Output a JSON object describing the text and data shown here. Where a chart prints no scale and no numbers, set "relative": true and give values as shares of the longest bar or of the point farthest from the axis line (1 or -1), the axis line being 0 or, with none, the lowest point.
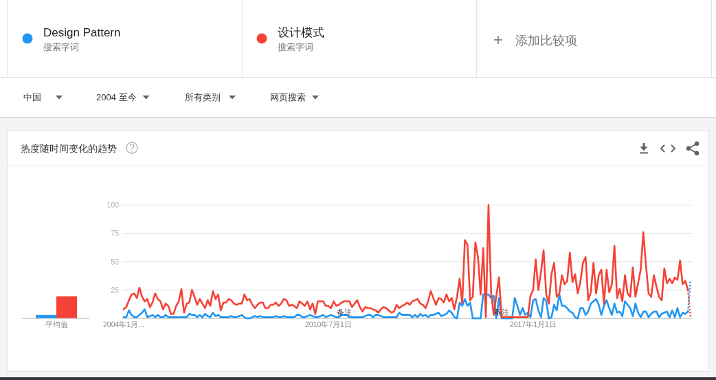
{
  "chart_data": [
    {
      "type": "other",
      "annotations": [
        "搜索字词",
        "搜索字词",
        "添加比较项",
        "中国",
        "2004 至今",
        "所有类别",
        "网页搜索"
      ]
    },
    {
      "type": "bar",
      "categories": [
        "平均值"
      ],
      "relative": true,
      "series": [
        {
          "color": "#2196f3",
          "values": [
            0.16
          ]
        },
        {
          "color": "#f44336",
          "values": [
            1
          ]
        }
      ]
    },
    {
      "type": "line",
      "title": "热度随时间变化的趋势",
      "legend": "top",
      "grid": "y",
      "xlim": [
        "2004-01",
        "2022-01"
      ],
      "ylim": [
        0,
        100
      ],
      "xticks": [
        {
          "value": "2004-01",
          "label": "2004年1月..."
        },
        {
          "value": "2010-07",
          "label": "2010年7月1日"
        },
        {
          "value": "2017-01",
          "label": "2017年1月1日"
        }
      ],
      "yticks": [
        25,
        50,
        75,
        100
      ],
      "annotations": [
        {
          "text": "备注",
          "x": "2011-01",
          "y": 0
        },
        {
          "text": "备注",
          "x": "2016-01",
          "y": 0
        }
      ],
      "x": [
        "2004-01",
        "2004-02",
        "2004-03",
        "2004-04",
        "2004-05",
        "2004-06",
        "2004-07",
        "2004-08",
        "2004-09",
        "2004-10",
        "2004-11",
        "2004-12",
        "2005-01",
        "2005-02",
        "2005-03",
        "2005-04",
        "2005-05",
        "2005-06",
        "2005-07",
        "2005-08",
        "2005-09",
        "2005-10",
        "2005-11",
        "2005-12",
        "2006-01",
        "2006-02",
        "2006-03",
        "2006-04",
        "2006-05",
        "2006-06",
        "2006-07",
        "2006-08",
        "2006-09",
        "2006-10",
        "2006-11",
        "2006-12",
        "2007-01",
        "2007-02",
        "2007-03",
        "2007-04",
        "2007-05",
        "2007-06",
        "2007-07",
        "2007-08",
        "2007-09",
        "2007-10",
        "2007-11",
        "2007-12",
        "2008-01",
        "2008-02",
        "2008-03",
        "2008-04",
        "2008-05",
        "2008-06",
        "2008-07",
        "2008-08",
        "2008-09",
        "2008-10",
        "2008-11",
        "2008-12",
        "2009-01",
        "2009-02",
        "2009-03",
        "2009-04",
        "2009-05",
        "2009-06",
        "2009-07",
        "2009-08",
        "2009-09",
        "2009-10",
        "2009-11",
        "2009-12",
        "2010-01",
        "2010-02",
        "2010-03",
        "2010-04",
        "2010-05",
        "2010-06",
        "2010-07",
        "2010-08",
        "2010-09",
        "2010-10",
        "2010-11",
        "2010-12",
        "2011-01",
        "2011-02",
        "2011-03",
        "2011-04",
        "2011-05",
        "2011-06",
        "2011-07",
        "2011-08",
        "2011-09",
        "2011-10",
        "2011-11",
        "2011-12",
        "2012-01",
        "2012-02",
        "2012-03",
        "2012-04",
        "2012-05",
        "2012-06",
        "2012-07",
        "2012-08",
        "2012-09",
        "2012-10",
        "2012-11",
        "2012-12",
        "2013-01",
        "2013-02",
        "2013-03",
        "2013-04",
        "2013-05",
        "2013-06",
        "2013-07",
        "2013-08",
        "2013-09",
        "2013-10",
        "2013-11",
        "2013-12",
        "2014-01",
        "2014-02",
        "2014-03",
        "2014-04",
        "2014-05",
        "2014-06",
        "2014-07",
        "2014-08",
        "2014-09",
        "2014-10",
        "2014-11",
        "2014-12",
        "2015-01",
        "2015-02",
        "2015-03",
        "2015-04",
        "2015-05",
        "2015-06",
        "2015-07",
        "2015-08",
        "2015-09",
        "2015-10",
        "2015-11",
        "2015-12",
        "2016-01",
        "2016-02",
        "2016-03",
        "2016-04",
        "2016-05",
        "2016-06",
        "2016-07",
        "2016-08",
        "2016-09",
        "2016-10",
        "2016-11",
        "2016-12",
        "2017-01",
        "2017-02",
        "2017-03",
        "2017-04",
        "2017-05",
        "2017-06",
        "2017-07",
        "2017-08",
        "2017-09",
        "2017-10",
        "2017-11",
        "2017-12",
        "2018-01",
        "2018-02",
        "2018-03",
        "2018-04",
        "2018-05",
        "2018-06",
        "2018-07",
        "2018-08",
        "2018-09",
        "2018-10",
        "2018-11",
        "2018-12",
        "2019-01",
        "2019-02",
        "2019-03",
        "2019-04",
        "2019-05",
        "2019-06",
        "2019-07",
        "2019-08",
        "2019-09",
        "2019-10",
        "2019-11",
        "2019-12",
        "2020-01",
        "2020-02",
        "2020-03",
        "2020-04",
        "2020-05",
        "2020-06",
        "2020-07",
        "2020-08",
        "2020-09",
        "2020-10",
        "2020-11",
        "2020-12",
        "2021-01",
        "2021-02",
        "2021-03",
        "2021-04",
        "2021-05",
        "2021-06",
        "2021-07",
        "2021-08",
        "2021-09",
        "2021-10",
        "2021-11",
        "2021-12"
      ],
      "series": [
        {
          "name": "Design Pattern",
          "color": "#2196f3",
          "values": [
            1,
            1,
            7,
            3,
            1,
            1,
            3,
            5,
            8,
            1,
            2,
            3,
            1,
            3,
            1,
            1,
            3,
            1,
            1,
            1,
            1,
            1,
            1,
            1,
            1,
            4,
            3,
            3,
            1,
            3,
            1,
            4,
            2,
            1,
            5,
            2,
            3,
            1,
            1,
            1,
            1,
            2,
            1,
            1,
            2,
            3,
            1,
            0,
            0,
            1,
            2,
            1,
            2,
            1,
            1,
            1,
            1,
            1,
            2,
            1,
            1,
            2,
            1,
            1,
            1,
            1,
            3,
            3,
            1,
            1,
            2,
            3,
            2,
            1,
            1,
            2,
            3,
            1,
            2,
            3,
            2,
            1,
            1,
            3,
            3,
            3,
            1,
            1,
            1,
            1,
            1,
            1,
            2,
            3,
            3,
            1,
            3,
            3,
            2,
            1,
            1,
            1,
            1,
            1,
            1,
            5,
            3,
            3,
            3,
            3,
            1,
            3,
            1,
            4,
            2,
            3,
            1,
            3,
            3,
            4,
            5,
            2,
            3,
            4,
            7,
            5,
            1,
            0,
            14,
            11,
            17,
            11,
            14,
            0,
            0,
            0,
            0,
            21,
            21,
            21,
            18,
            20,
            0,
            18,
            0,
            0,
            0,
            0,
            0,
            18,
            11,
            3,
            9,
            3,
            5,
            1,
            16,
            17,
            7,
            1,
            18,
            15,
            0,
            1,
            12,
            7,
            21,
            11,
            11,
            9,
            6,
            5,
            1,
            0,
            9,
            9,
            3,
            6,
            13,
            15,
            17,
            12,
            3,
            11,
            16,
            9,
            3,
            13,
            5,
            6,
            2,
            15,
            12,
            9,
            2,
            13,
            5,
            1,
            6,
            6,
            1,
            4,
            6,
            6,
            1,
            4,
            5,
            6,
            1,
            7,
            1,
            9,
            1,
            5,
            4,
            6
          ]
        },
        {
          "name": "设计模式",
          "color": "#f44336",
          "values": [
            8,
            10,
            16,
            21,
            22,
            18,
            27,
            19,
            15,
            17,
            10,
            14,
            22,
            17,
            15,
            8,
            13,
            11,
            4,
            4,
            11,
            15,
            26,
            5,
            13,
            14,
            25,
            19,
            12,
            17,
            13,
            9,
            16,
            11,
            24,
            17,
            21,
            7,
            14,
            14,
            17,
            16,
            13,
            12,
            13,
            13,
            21,
            16,
            17,
            12,
            9,
            12,
            14,
            14,
            9,
            9,
            12,
            12,
            14,
            11,
            13,
            17,
            16,
            11,
            12,
            11,
            9,
            15,
            13,
            11,
            15,
            8,
            13,
            4,
            15,
            15,
            15,
            11,
            11,
            9,
            15,
            11,
            12,
            14,
            15,
            15,
            15,
            10,
            13,
            16,
            10,
            6,
            10,
            9,
            9,
            8,
            7,
            5,
            8,
            10,
            9,
            7,
            5,
            6,
            12,
            9,
            11,
            12,
            14,
            12,
            15,
            16,
            17,
            13,
            12,
            9,
            15,
            24,
            18,
            12,
            18,
            17,
            14,
            21,
            15,
            18,
            8,
            19,
            35,
            13,
            69,
            65,
            16,
            19,
            67,
            54,
            21,
            62,
            1,
            100,
            23,
            3,
            20,
            36,
            1,
            1,
            1,
            1,
            1,
            1,
            1,
            1,
            1,
            1,
            1,
            20,
            25,
            52,
            25,
            41,
            60,
            21,
            13,
            39,
            49,
            19,
            22,
            38,
            30,
            33,
            58,
            32,
            39,
            22,
            32,
            49,
            54,
            16,
            23,
            49,
            22,
            38,
            43,
            13,
            43,
            23,
            30,
            64,
            18,
            26,
            15,
            38,
            22,
            19,
            45,
            19,
            31,
            43,
            76,
            47,
            22,
            19,
            38,
            28,
            19,
            16,
            44,
            31,
            35,
            31,
            36,
            34,
            51,
            30,
            33,
            25
          ]
        },
        {
          "color": "#2196f3",
          "line_style": "dotted",
          "x": [
            "2021-12",
            "2022-01"
          ],
          "values": [
            6,
            34
          ]
        },
        {
          "color": "#f44336",
          "line_style": "dotted",
          "x": [
            "2021-12",
            "2022-01"
          ],
          "values": [
            25,
            1
          ]
        }
      ]
    }
  ]
}
